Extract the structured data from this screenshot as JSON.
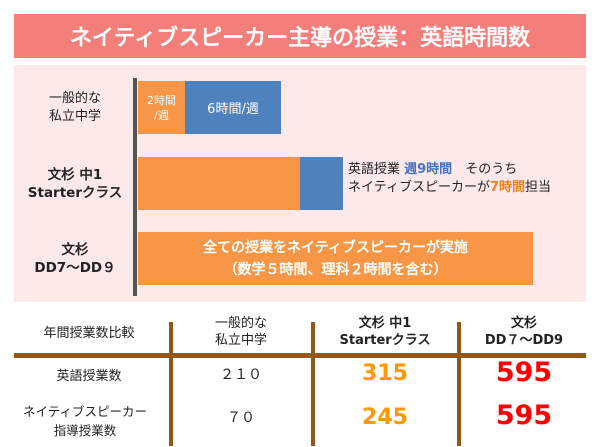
{
  "title": "ネイティブスピーカー主導の授業：英語時間数",
  "chart": {
    "rows": [
      {
        "label": [
          "一般的な",
          "私立中学"
        ],
        "native_hours_label": [
          "2時間",
          "/週"
        ],
        "other_hours_label": "6時間/週"
      },
      {
        "label": [
          "文杉 中1",
          "Starterクラス"
        ]
      },
      {
        "label": [
          "文杉",
          "DD7～DD９"
        ],
        "bar_text": [
          "全ての授業をネイティブスピーカーが実施",
          "（数学５時間、理科２時間を含む）"
        ]
      }
    ],
    "note": {
      "line1_prefix": "英語授業 ",
      "line1_highlight": "週9時間",
      "line1_suffix": "　そのうち",
      "line2_prefix": "ネイティブスピーカーが",
      "line2_highlight": "7時間",
      "line2_suffix": "担当"
    },
    "colors": {
      "native": "#F79646",
      "other": "#4F81BD"
    }
  },
  "table": {
    "headers": [
      [
        "年間授業数比較"
      ],
      [
        "一般的な",
        "私立中学"
      ],
      [
        "文杉 中1",
        "Starterクラス"
      ],
      [
        "文杉",
        "DD７～DD9"
      ]
    ],
    "rows": [
      {
        "label": [
          "英語授業数"
        ],
        "values": [
          "２１０",
          "315",
          "595"
        ]
      },
      {
        "label": [
          "ネイティブスピーカー",
          "指導授業数"
        ],
        "values": [
          "７０",
          "245",
          "595"
        ]
      }
    ],
    "colors": {
      "starter": "#FF9900",
      "dd": "#FF0000",
      "rule": "#92581A"
    }
  }
}
